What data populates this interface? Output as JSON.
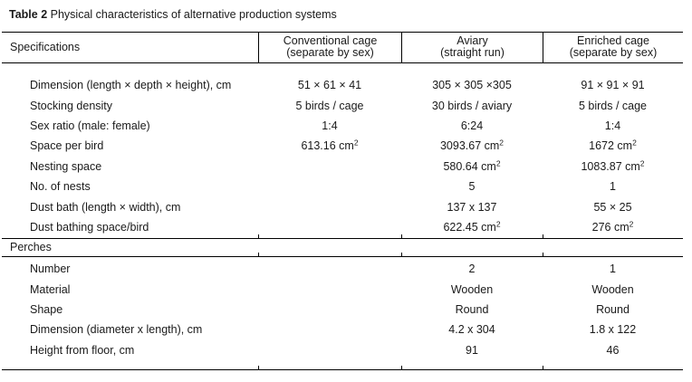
{
  "colors": {
    "background": "#ffffff",
    "text": "#1a1a1a",
    "rule": "#000000"
  },
  "title": {
    "label": "Table 2",
    "text": "Physical characteristics of alternative production systems"
  },
  "table": {
    "header": {
      "spec_label": "Specifications",
      "columns": [
        {
          "line1": "Conventional cage",
          "line2": "(separate by sex)"
        },
        {
          "line1": "Aviary",
          "line2": "(straight run)"
        },
        {
          "line1": "Enriched cage",
          "line2": "(separate by sex)"
        }
      ]
    },
    "sections": [
      {
        "name": "",
        "rows": [
          {
            "label": "Dimension (length × depth × height), cm",
            "values": [
              "51 × 61 × 41",
              "305 × 305 ×305",
              "91 × 91 × 91"
            ]
          },
          {
            "label": "Stocking density",
            "values": [
              "5 birds / cage",
              "30 birds / aviary",
              "5 birds / cage"
            ]
          },
          {
            "label": "Sex ratio (male: female)",
            "values": [
              "1:4",
              "6:24",
              "1:4"
            ]
          },
          {
            "label": "Space per bird",
            "values": [
              "613.16 cm^2",
              "3093.67 cm^2",
              "1672 cm^2"
            ]
          },
          {
            "label": "Nesting space",
            "values": [
              "",
              "580.64 cm^2",
              "1083.87 cm^2"
            ]
          },
          {
            "label": "No. of nests",
            "values": [
              "",
              "5",
              "1"
            ]
          },
          {
            "label": "Dust bath (length × width), cm",
            "values": [
              "",
              "137 x 137",
              "55 × 25"
            ]
          },
          {
            "label": "Dust bathing space/bird",
            "values": [
              "",
              "622.45 cm^2",
              "276 cm^2"
            ]
          }
        ]
      },
      {
        "name": "Perches",
        "rows": [
          {
            "label": "Number",
            "values": [
              "",
              "2",
              "1"
            ]
          },
          {
            "label": "Material",
            "values": [
              "",
              "Wooden",
              "Wooden"
            ]
          },
          {
            "label": "Shape",
            "values": [
              "",
              "Round",
              "Round"
            ]
          },
          {
            "label": "Dimension (diameter x length), cm",
            "values": [
              "",
              "4.2 x 304",
              "1.8 x 122"
            ]
          },
          {
            "label": "Height from floor, cm",
            "values": [
              "",
              "91",
              "46"
            ]
          }
        ]
      }
    ]
  }
}
